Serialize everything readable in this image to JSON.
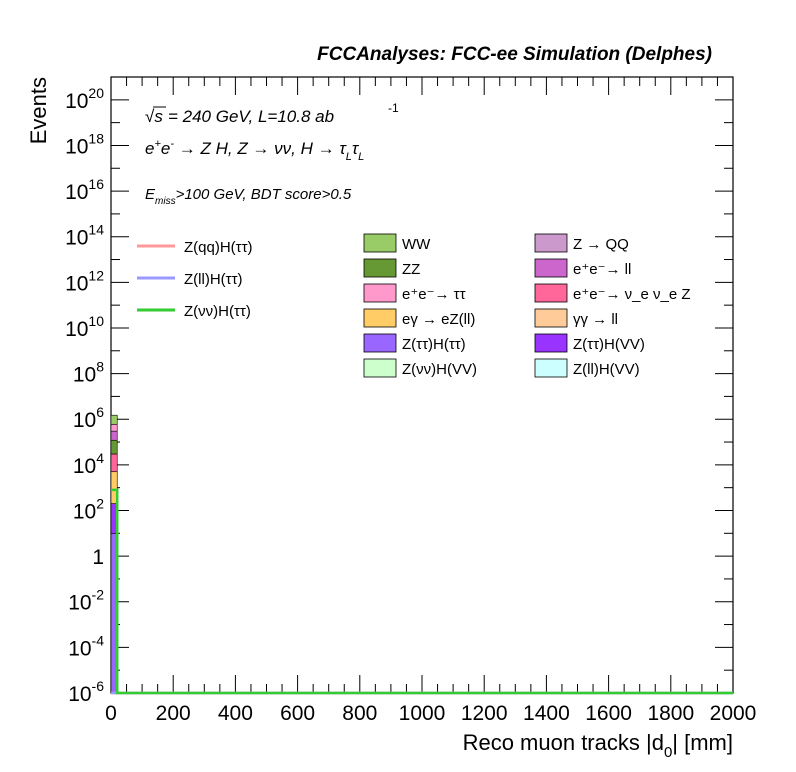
{
  "header_title": "FCCAnalyses: FCC-ee Simulation (Delphes)",
  "annotations": {
    "line1": "= 240 GeV, L=10.8 ab",
    "line1_sqrt": "√s",
    "line1_exp": "-1",
    "line2": "e⁺e⁻ → Z H, Z → νν, H → τ_L τ_L",
    "line3_sub": "miss",
    "line3_main": ">100 GeV, BDT score>0.5",
    "line3_E": "E"
  },
  "chart_data": {
    "type": "bar",
    "title": "FCCAnalyses: FCC-ee Simulation (Delphes)",
    "xlabel": "Reco muon tracks |d0| [mm]",
    "ylabel": "Events",
    "xlim": [
      0,
      2000
    ],
    "ylim": [
      1e-06,
      1e+21
    ],
    "ylog": true,
    "x_ticks": [
      "0",
      "200",
      "400",
      "600",
      "800",
      "1000",
      "1200",
      "1400",
      "1600",
      "1800",
      "2000"
    ],
    "y_ticks": [
      {
        "exp": "-6",
        "base": "10"
      },
      {
        "exp": "-4",
        "base": "10"
      },
      {
        "exp": "-2",
        "base": "10"
      },
      {
        "exp": "",
        "base": "1"
      },
      {
        "exp": "2",
        "base": "10"
      },
      {
        "exp": "4",
        "base": "10"
      },
      {
        "exp": "6",
        "base": "10"
      },
      {
        "exp": "8",
        "base": "10"
      },
      {
        "exp": "10",
        "base": "10"
      },
      {
        "exp": "12",
        "base": "10"
      },
      {
        "exp": "14",
        "base": "10"
      },
      {
        "exp": "16",
        "base": "10"
      },
      {
        "exp": "18",
        "base": "10"
      },
      {
        "exp": "20",
        "base": "10"
      }
    ],
    "stack_bin": {
      "x_low": 0,
      "x_high": 20
    },
    "stack_segments": [
      {
        "name": "Z(ττ)H(ττ)",
        "color": "#9966ff",
        "low": 1e-06,
        "high": 10
      },
      {
        "name": "Z(ττ)H(VV)",
        "color": "#9933ff",
        "low": 10,
        "high": 200
      },
      {
        "name": "eγ → eZ(ll)",
        "color": "#ffcc66",
        "low": 200,
        "high": 5000
      },
      {
        "name": "e⁺e⁻→ ν_e ν_e Z",
        "color": "#ff6699",
        "low": 5000,
        "high": 30000
      },
      {
        "name": "ZZ",
        "color": "#669933",
        "low": 30000,
        "high": 120000
      },
      {
        "name": "e⁺e⁻→ ll",
        "color": "#cc66cc",
        "low": 120000,
        "high": 300000
      },
      {
        "name": "e⁺e⁻→ ττ",
        "color": "#ff99cc",
        "low": 300000,
        "high": 600000
      },
      {
        "name": "WW",
        "color": "#99cc66",
        "low": 600000,
        "high": 1500000
      }
    ],
    "line_series": [
      {
        "name": "Z(qq)H(ττ)",
        "color": "#ff9999",
        "bin_value": 1e-06
      },
      {
        "name": "Z(ll)H(ττ)",
        "color": "#9999ff",
        "bin_value": 1e-06
      },
      {
        "name": "Z(νν)H(ττ)",
        "color": "#33cc33",
        "bin_value": 800
      }
    ],
    "legend_lines": [
      {
        "name": "Z(qq)H(ττ)",
        "color": "#ff9999"
      },
      {
        "name": "Z(ll)H(ττ)",
        "color": "#9999ff"
      },
      {
        "name": "Z(νν)H(ττ)",
        "color": "#33cc33"
      }
    ],
    "legend_fills": [
      {
        "name": "WW",
        "color": "#99cc66"
      },
      {
        "name": "Z → QQ",
        "color": "#cc99cc"
      },
      {
        "name": "ZZ",
        "color": "#669933"
      },
      {
        "name": "e⁺e⁻→ ll",
        "color": "#cc66cc"
      },
      {
        "name": "e⁺e⁻→ ττ",
        "color": "#ff99cc"
      },
      {
        "name": "e⁺e⁻→ ν_e ν_e Z",
        "color": "#ff6699"
      },
      {
        "name": "eγ → eZ(ll)",
        "color": "#ffcc66"
      },
      {
        "name": "γγ → ll",
        "color": "#ffcc99"
      },
      {
        "name": "Z(ττ)H(ττ)",
        "color": "#9966ff"
      },
      {
        "name": "Z(ττ)H(VV)",
        "color": "#9933ff"
      },
      {
        "name": "Z(νν)H(VV)",
        "color": "#ccffcc"
      },
      {
        "name": "Z(ll)H(VV)",
        "color": "#ccffff"
      }
    ]
  }
}
